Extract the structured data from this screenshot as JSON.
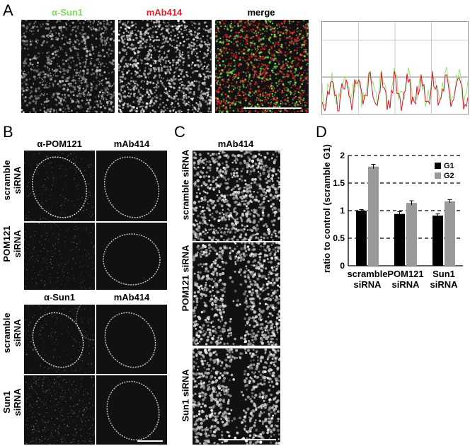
{
  "panel_labels": {
    "a": "A",
    "b": "B",
    "c": "C",
    "d": "D"
  },
  "panel_a": {
    "col1": "α-Sun1",
    "col2": "mAb414",
    "col3": "merge",
    "col1_color": "#7fdc5a",
    "col2_color": "#e0212b"
  },
  "panel_b": {
    "top_col1": "α-POM121",
    "top_col2": "mAb414",
    "bottom_col1": "α-Sun1",
    "bottom_col2": "mAb414",
    "rows": [
      {
        "line1": "scramble",
        "line2": "siRNA"
      },
      {
        "line1": "POM121",
        "line2": "siRNA"
      },
      {
        "line1": "scramble",
        "line2": "siRNA"
      },
      {
        "line1": "Sun1",
        "line2": "siRNA"
      }
    ]
  },
  "panel_c": {
    "header": "mAb414",
    "rows": [
      "scramble siRNA",
      "POM121 siRNA",
      "Sun1 siRNA"
    ]
  },
  "chart_data": {
    "type": "bar",
    "ylabel": "ratio to control (scramble G1)",
    "ylim": [
      0,
      2
    ],
    "yticks": [
      "0",
      "0.5",
      "1",
      "1.5",
      "2"
    ],
    "categories": [
      [
        "scramble",
        "siRNA"
      ],
      [
        "POM121",
        "siRNA"
      ],
      [
        "Sun1",
        "siRNA"
      ]
    ],
    "series": [
      {
        "name": "G1",
        "color": "#000000",
        "values": [
          1.0,
          0.94,
          0.91
        ],
        "errors": [
          0.02,
          0.04,
          0.03
        ]
      },
      {
        "name": "G2",
        "color": "#9a9a9a",
        "values": [
          1.8,
          1.14,
          1.17
        ],
        "errors": [
          0.04,
          0.04,
          0.03
        ]
      }
    ],
    "grid": "dashed-horizontal",
    "legend": "top-right"
  }
}
